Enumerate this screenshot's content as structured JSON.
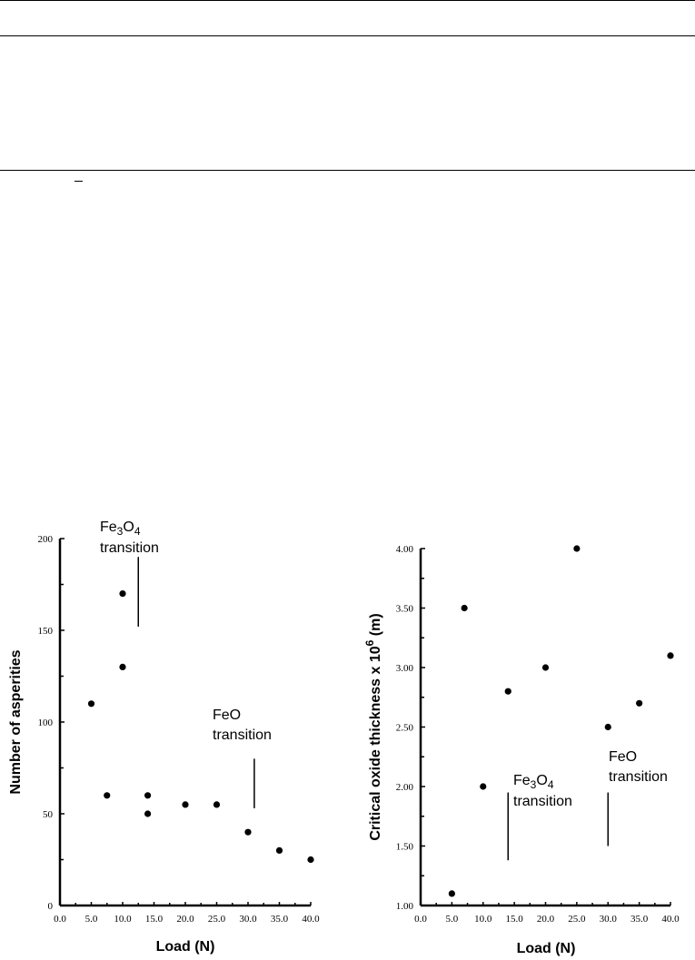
{
  "chart_data": [
    {
      "type": "scatter",
      "xlabel": "Load (N)",
      "ylabel": "Number of asperities",
      "xlim": [
        0,
        40
      ],
      "ylim": [
        0,
        200
      ],
      "x_ticks": [
        "0.0",
        "5.0",
        "10.0",
        "15.0",
        "20.0",
        "25.0",
        "30.0",
        "35.0",
        "40.0"
      ],
      "y_ticks": [
        "0",
        "50",
        "100",
        "150",
        "200"
      ],
      "points": [
        {
          "x": 5,
          "y": 110
        },
        {
          "x": 7.5,
          "y": 60
        },
        {
          "x": 10,
          "y": 170
        },
        {
          "x": 10,
          "y": 130
        },
        {
          "x": 14,
          "y": 60
        },
        {
          "x": 14,
          "y": 50
        },
        {
          "x": 20,
          "y": 55
        },
        {
          "x": 25,
          "y": 55
        },
        {
          "x": 30,
          "y": 40
        },
        {
          "x": 35,
          "y": 30
        },
        {
          "x": 40,
          "y": 25
        }
      ],
      "annotations": [
        {
          "label_main": "Fe",
          "sub1": "3",
          "mid": "O",
          "sub2": "4",
          "line2": "transition",
          "x": 12.5,
          "y_from": 152,
          "y_to": 190
        },
        {
          "label_main": "FeO",
          "line2": "transition",
          "x": 31,
          "y_from": 53,
          "y_to": 80
        }
      ]
    },
    {
      "type": "scatter",
      "xlabel": "Load (N)",
      "ylabel_main": "Critical oxide thickness x 10",
      "ylabel_sup": "6",
      "ylabel_unit": " (m)",
      "xlim": [
        0,
        40
      ],
      "ylim": [
        1.0,
        4.0
      ],
      "x_ticks": [
        "0.0",
        "5.0",
        "10.0",
        "15.0",
        "20.0",
        "25.0",
        "30.0",
        "35.0",
        "40.0"
      ],
      "y_ticks": [
        "1.00",
        "1.50",
        "2.00",
        "2.50",
        "3.00",
        "3.50",
        "4.00"
      ],
      "points": [
        {
          "x": 5,
          "y": 1.1
        },
        {
          "x": 7,
          "y": 3.5
        },
        {
          "x": 10,
          "y": 2.0
        },
        {
          "x": 14,
          "y": 2.8
        },
        {
          "x": 20,
          "y": 3.0
        },
        {
          "x": 25,
          "y": 4.0
        },
        {
          "x": 30,
          "y": 2.5
        },
        {
          "x": 35,
          "y": 2.7
        },
        {
          "x": 40,
          "y": 3.1
        }
      ],
      "annotations": [
        {
          "label_main": "Fe",
          "sub1": "3",
          "mid": "O",
          "sub2": "4",
          "line2": "transition",
          "x": 14,
          "y_from": 1.38,
          "y_to": 1.95
        },
        {
          "label_main": "FeO",
          "line2": "transition",
          "x": 30,
          "y_from": 1.5,
          "y_to": 1.95
        }
      ]
    }
  ]
}
